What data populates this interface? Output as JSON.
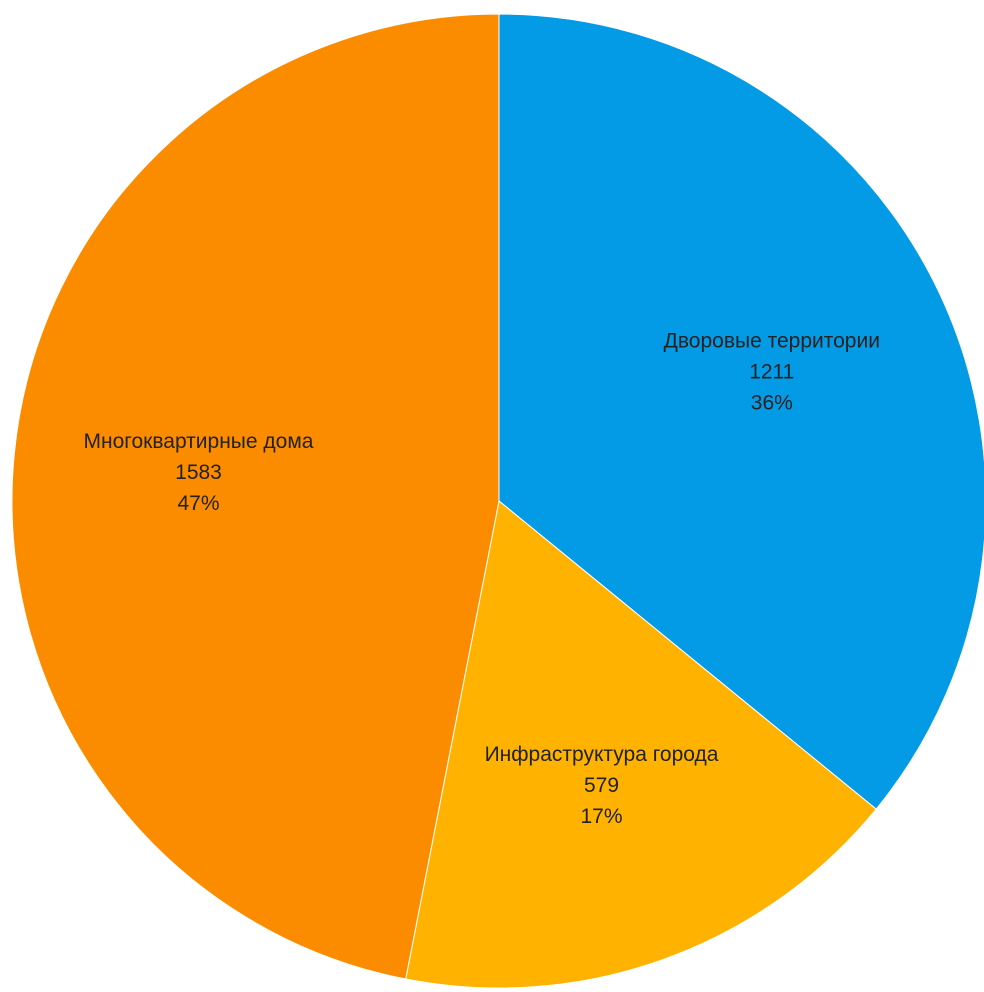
{
  "chart_data": {
    "type": "pie",
    "start_angle_deg": 0,
    "direction": "clockwise",
    "slices": [
      {
        "label": "Дворовые территории",
        "value": 1211,
        "value_text": "1211",
        "percent_text": "36%",
        "color": "#039BE5"
      },
      {
        "label": "Инфраструктура города",
        "value": 579,
        "value_text": "579",
        "percent_text": "17%",
        "color": "#FFB300"
      },
      {
        "label": "Многоквартирные дома",
        "value": 1583,
        "value_text": "1583",
        "percent_text": "47%",
        "color": "#FB8C00"
      }
    ],
    "slice_border_color": "#FFFFFF",
    "legend": "none"
  }
}
